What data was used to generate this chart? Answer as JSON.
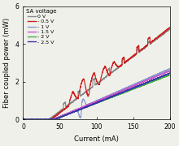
{
  "xlabel": "Current (mA)",
  "ylabel": "Fiber coupled power (mW)",
  "xlim": [
    0,
    200
  ],
  "ylim": [
    0,
    6
  ],
  "xticks": [
    0,
    50,
    100,
    150,
    200
  ],
  "yticks": [
    0,
    2,
    4,
    6
  ],
  "legend_title": "SA voltage",
  "legend_entries": [
    "0 V",
    "- 0.5 V",
    "- 1 V",
    "- 1.5 V",
    "- 2 V",
    "- 2.5 V"
  ],
  "colors": [
    "#888888",
    "#cc2222",
    "#8899cc",
    "#cc55cc",
    "#44aa44",
    "#3333aa"
  ],
  "background": "#f0f0eb",
  "figsize": [
    2.2,
    1.8
  ],
  "dpi": 100
}
